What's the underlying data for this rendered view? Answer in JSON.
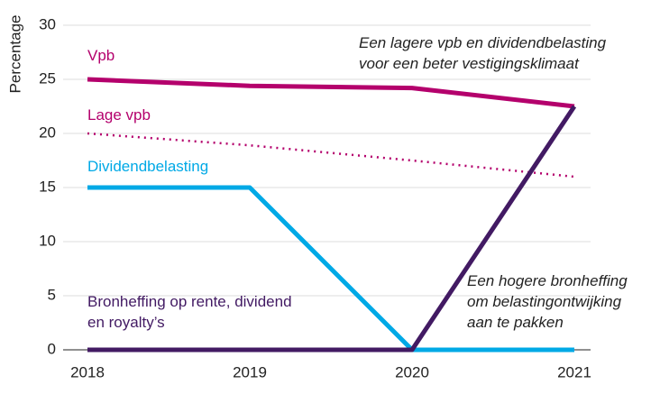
{
  "chart_data": {
    "type": "line",
    "ylabel": "Percentage",
    "categories": [
      "2018",
      "2019",
      "2020",
      "2021"
    ],
    "series": [
      {
        "name": "Vpb",
        "color": "#b4006c",
        "style": "solid",
        "values": [
          25,
          24.4,
          24.2,
          22.5
        ]
      },
      {
        "name": "Lage vpb",
        "color": "#b4006c",
        "style": "dotted",
        "values": [
          20,
          18.9,
          17.5,
          16
        ]
      },
      {
        "name": "Dividendbelasting",
        "color": "#00a9e6",
        "style": "solid",
        "values": [
          15,
          15,
          0,
          0
        ]
      },
      {
        "name": "Bronheffing op rente, dividend en royalty’s",
        "color": "#421a63",
        "style": "solid",
        "values": [
          0,
          0,
          0,
          22.5
        ]
      }
    ],
    "annotations": [
      [
        "Een lagere vpb en dividendbelasting",
        "voor een beter vestigingsklimaat"
      ],
      [
        "Een hogere bronheffing",
        "om belastingontwijking",
        "aan te pakken"
      ]
    ],
    "ylim": [
      0,
      30
    ],
    "yticks": [
      0,
      5,
      10,
      15,
      20,
      25,
      30
    ],
    "grid": true
  }
}
